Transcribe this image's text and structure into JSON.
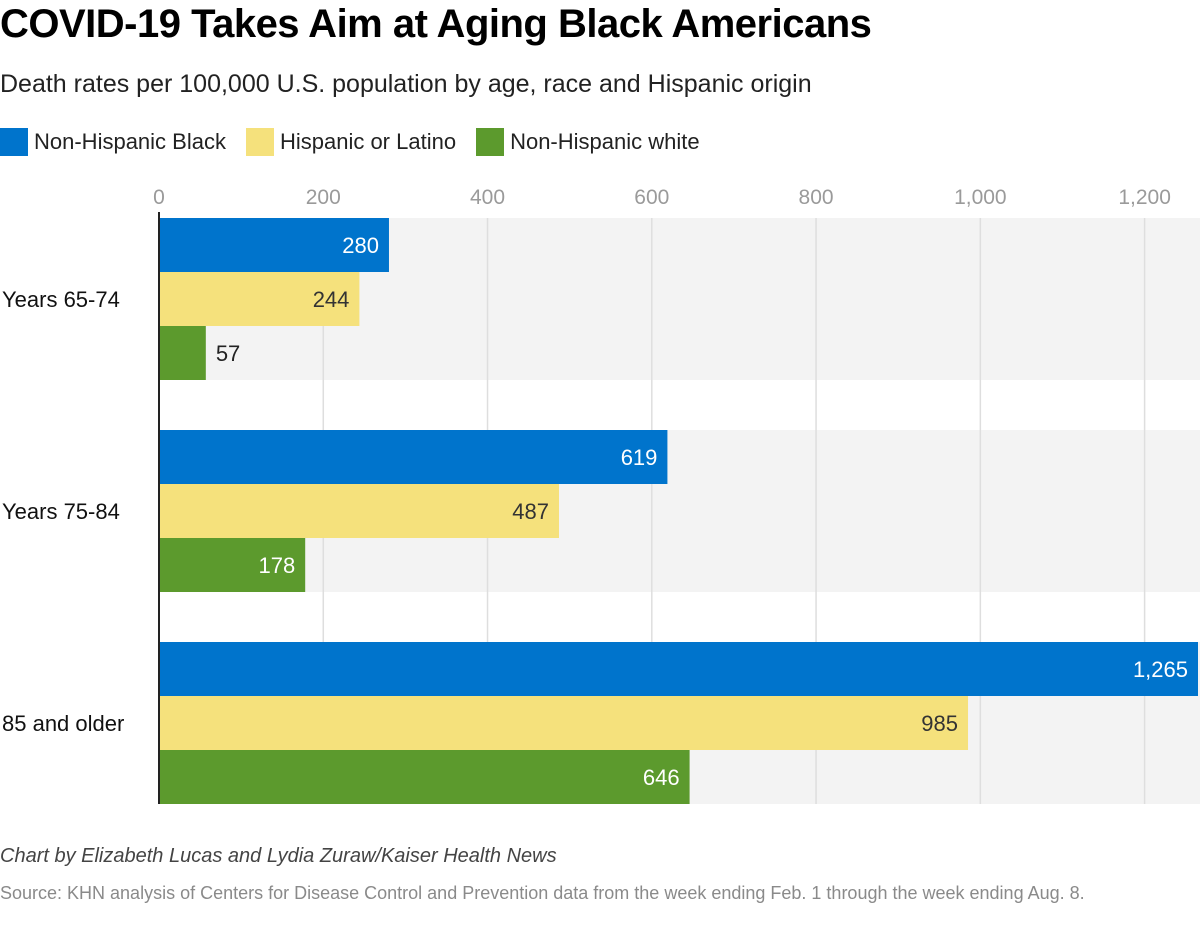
{
  "title": "COVID-19 Takes Aim at Aging Black Americans",
  "subtitle": "Death rates per 100,000 U.S. population by age, race and Hispanic origin",
  "colors": {
    "black": "#0074cc",
    "hispanic": "#f5e17c",
    "white": "#5c9a2d"
  },
  "chart_data": {
    "type": "bar",
    "orientation": "horizontal",
    "title": "COVID-19 Takes Aim at Aging Black Americans",
    "subtitle": "Death rates per 100,000 U.S. population by age, race and Hispanic origin",
    "xlabel": "",
    "ylabel": "",
    "xlim": [
      0,
      1265
    ],
    "ticks": [
      0,
      200,
      400,
      600,
      800,
      1000,
      1200
    ],
    "tick_labels": [
      "0",
      "200",
      "400",
      "600",
      "800",
      "1,000",
      "1,200"
    ],
    "grid": true,
    "legend_position": "top-left",
    "categories": [
      "Years 65-74",
      "Years 75-84",
      "85 and older"
    ],
    "series": [
      {
        "name": "Non-Hispanic Black",
        "color": "#0074cc",
        "label_color": "#ffffff",
        "values": [
          280,
          619,
          1265
        ],
        "labels": [
          "280",
          "619",
          "1,265"
        ]
      },
      {
        "name": "Hispanic or Latino",
        "color": "#f5e17c",
        "label_color": "#333333",
        "values": [
          244,
          487,
          985
        ],
        "labels": [
          "244",
          "487",
          "985"
        ]
      },
      {
        "name": "Non-Hispanic white",
        "color": "#5c9a2d",
        "label_color": "#ffffff",
        "values": [
          57,
          178,
          646
        ],
        "labels": [
          "57",
          "178",
          "646"
        ]
      }
    ]
  },
  "byline": "Chart by Elizabeth Lucas and Lydia Zuraw/Kaiser Health News",
  "source": "Source: KHN analysis of Centers for Disease Control and Prevention data from the week ending Feb. 1 through the week ending Aug. 8."
}
